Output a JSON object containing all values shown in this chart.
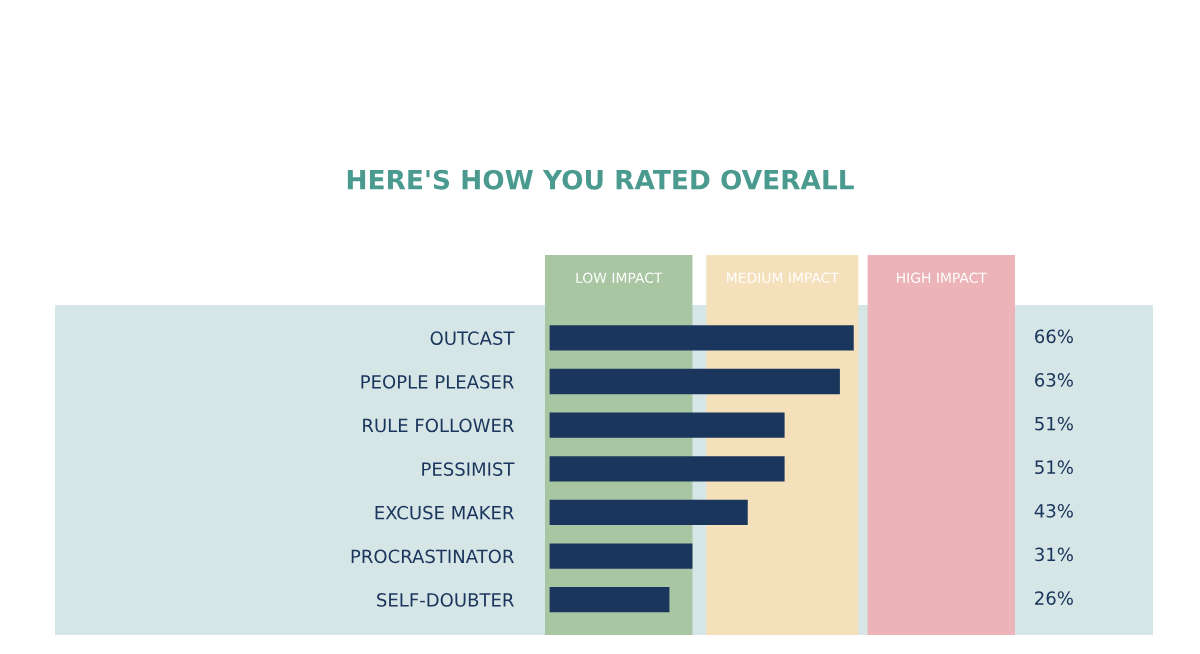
{
  "chart_data": {
    "type": "bar",
    "orientation": "horizontal",
    "title": "HERE'S HOW YOU RATED OVERALL",
    "categories": [
      "OUTCAST",
      "PEOPLE PLEASER",
      "RULE FOLLOWER",
      "PESSIMIST",
      "EXCUSE MAKER",
      "PROCRASTINATOR",
      "SELF-DOUBTER"
    ],
    "values": [
      66,
      63,
      51,
      51,
      43,
      31,
      26
    ],
    "value_labels": [
      "66%",
      "63%",
      "51%",
      "51%",
      "43%",
      "31%",
      "26%"
    ],
    "color": "#1b365d",
    "tick_labels": "y",
    "grid": false,
    "legend": false,
    "bands": [
      {
        "axis": "x",
        "from": -1,
        "to": 31,
        "label": "LOW IMPACT",
        "color": "#a9c6a3"
      },
      {
        "axis": "x",
        "from": 34,
        "to": 67,
        "label": "MEDIUM IMPACT",
        "color": "#f5e0bc"
      },
      {
        "axis": "x",
        "from": 69,
        "to": 101,
        "label": "HIGH IMPACT",
        "color": "#ecb4b9"
      }
    ]
  }
}
